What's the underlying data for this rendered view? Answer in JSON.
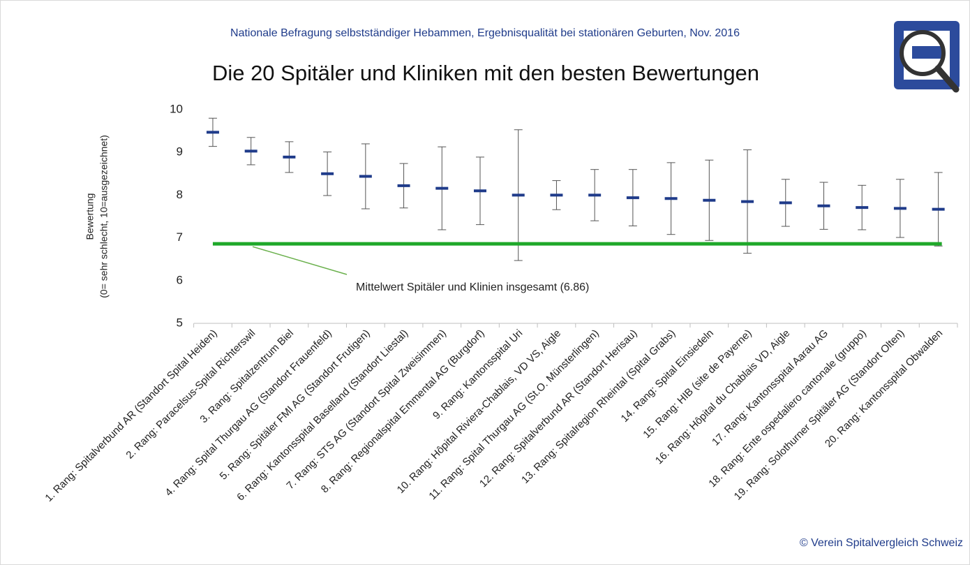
{
  "chart_data": {
    "type": "errorbar",
    "subtitle": "Nationale Befragung selbstständiger Hebammen, Ergebnisqualität bei stationären Geburten, Nov. 2016",
    "title": "Die 20 Spitäler und Kliniken mit den besten Bewertungen",
    "ylabel": [
      "Bewertung",
      "(0= sehr schlecht, 10=ausgezeichnet)"
    ],
    "categories": [
      "1. Rang: Spitalverbund AR (Standort Spital Heiden)",
      "2. Rang: Paracelsus-Spital Richterswil",
      "3. Rang: Spitalzentrum Biel",
      "4. Rang: Spital Thurgau AG (Standort Frauenfeld)",
      "5. Rang: Spitäler FMI AG (Standort Frutigen)",
      "6. Rang: Kantonsspital Baselland (Standort Liestal)",
      "7. Rang: STS AG (Standort Spital Zweisimmen)",
      "8. Rang: Regionalspital Emmental AG (Burgdorf)",
      "9. Rang: Kantonsspital Uri",
      "10. Rang: Hôpital Riviera-Chablais, VD VS, Aigle",
      "11. Rang: Spital Thurgau AG (St.O. Münsterlingen)",
      "12. Rang: Spitalverbund AR (Standort Herisau)",
      "13. Rang: Spitalregion Rheintal (Spital Grabs)",
      "14. Rang: Spital Einsiedeln",
      "15. Rang: HIB (site de Payerne)",
      "16. Rang: Hôpital du Chablais VD, Aigle",
      "17. Rang: Kantonsspital Aarau AG",
      "18. Rang: Ente ospedaliero cantonale (gruppo)",
      "19. Rang: Solothurner Spitäler AG (Standort Olten)",
      "20. Rang: Kantonsspital Obwalden"
    ],
    "values": [
      9.47,
      9.03,
      8.89,
      8.5,
      8.44,
      8.22,
      8.16,
      8.1,
      8.0,
      8.0,
      8.0,
      7.94,
      7.92,
      7.88,
      7.85,
      7.82,
      7.75,
      7.71,
      7.69,
      7.67
    ],
    "errors": [
      0.33,
      0.32,
      0.36,
      0.51,
      0.76,
      0.52,
      0.97,
      0.79,
      1.53,
      0.34,
      0.6,
      0.66,
      0.84,
      0.94,
      1.21,
      0.55,
      0.55,
      0.52,
      0.68,
      0.86
    ],
    "color": "#1f3b8a",
    "error_color": "#555555",
    "ylim": [
      5,
      10
    ],
    "yticks": [
      5,
      6,
      7,
      8,
      9,
      10
    ],
    "reference_line": {
      "value": 6.86,
      "label": "Mittelwert Spitäler und Klinien insgesamt (6.86)",
      "color": "#1fa82a"
    },
    "footer": "© Verein Spitalvergleich Schweiz"
  }
}
